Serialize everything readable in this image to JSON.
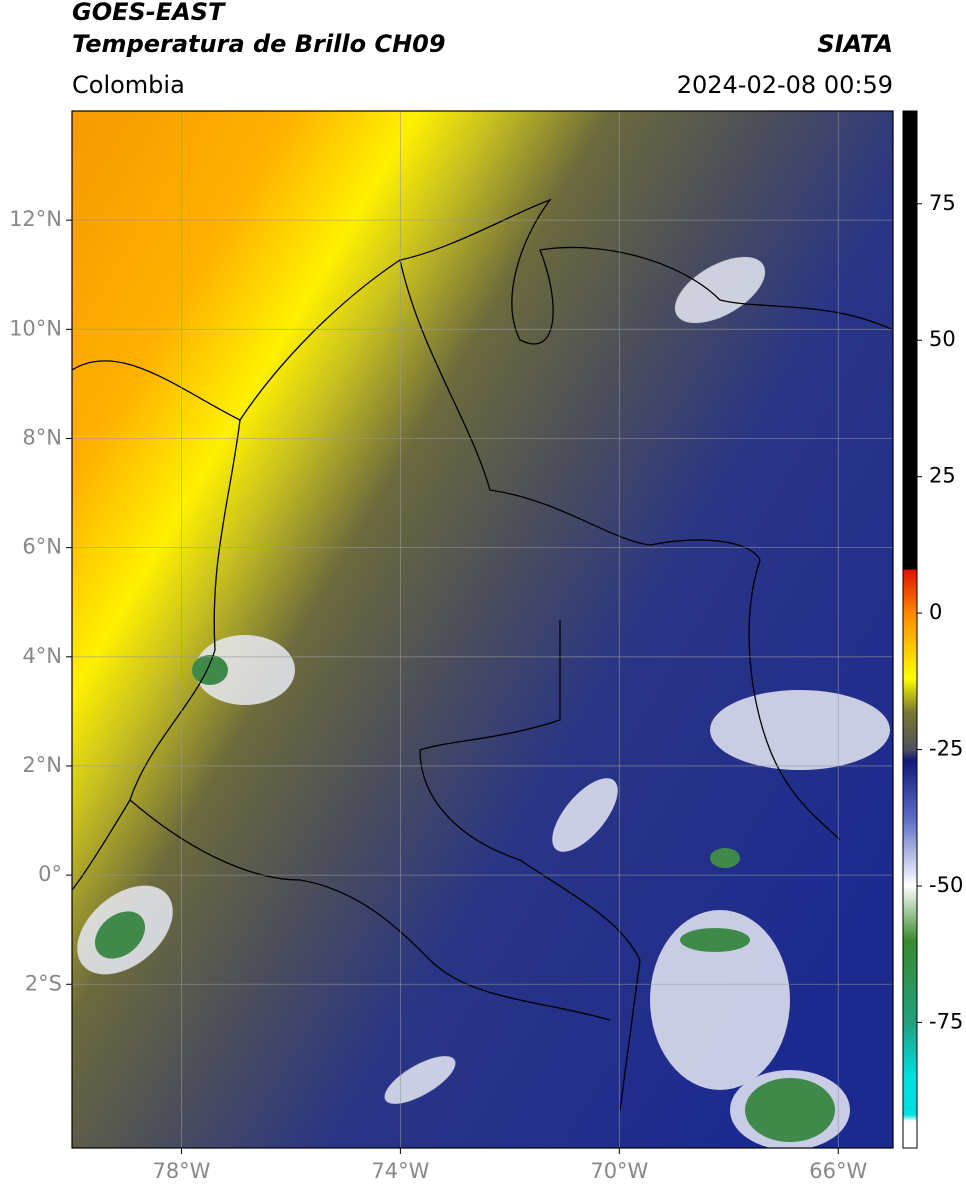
{
  "header": {
    "title": "GOES-EAST",
    "subtitle": "Temperatura de Brillo CH09",
    "source": "SIATA",
    "region": "Colombia",
    "datetime": "2024-02-08 00:59"
  },
  "map": {
    "xlim": [
      -80,
      -65
    ],
    "ylim": [
      -5,
      14
    ],
    "xticks": [
      {
        "value": -78,
        "label": "78°W"
      },
      {
        "value": -74,
        "label": "74°W"
      },
      {
        "value": -70,
        "label": "70°W"
      },
      {
        "value": -66,
        "label": "66°W"
      }
    ],
    "yticks": [
      {
        "value": 12,
        "label": "12°N"
      },
      {
        "value": 10,
        "label": "10°N"
      },
      {
        "value": 8,
        "label": "8°N"
      },
      {
        "value": 6,
        "label": "6°N"
      },
      {
        "value": 4,
        "label": "4°N"
      },
      {
        "value": 2,
        "label": "2°N"
      },
      {
        "value": 0,
        "label": "0°"
      },
      {
        "value": -2,
        "label": "2°S"
      }
    ]
  },
  "colorbar": {
    "lim": [
      -98,
      92
    ],
    "ticks": [
      75,
      50,
      25,
      0,
      -25,
      -50,
      -75
    ]
  }
}
